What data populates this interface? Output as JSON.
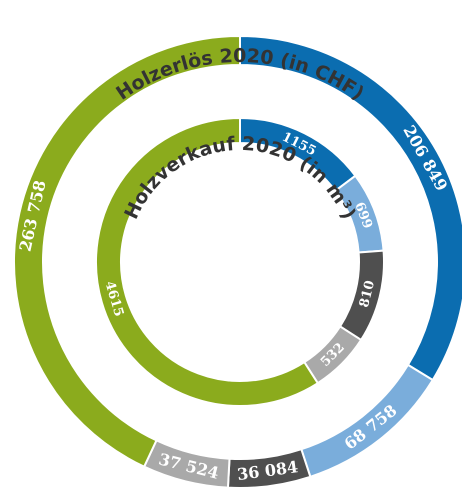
{
  "chart_data": [
    {
      "type": "donut",
      "title": "Holzerlös 2020 (in CHF)",
      "values": [
        206849,
        68758,
        36084,
        37524,
        263758
      ],
      "value_labels": [
        "206 849",
        "68 758",
        "36 084",
        "37 524",
        "263 758"
      ],
      "colors": [
        "#0b6db0",
        "#7aaddb",
        "#4f4f4f",
        "#a9a9a9",
        "#8bab1d"
      ]
    },
    {
      "type": "donut",
      "title": "Holzverkauf 2020 (in m³)",
      "values": [
        1155,
        699,
        810,
        532,
        4615
      ],
      "colors": [
        "#0b6db0",
        "#7aaddb",
        "#4f4f4f",
        "#a9a9a9",
        "#8bab1d"
      ]
    }
  ]
}
